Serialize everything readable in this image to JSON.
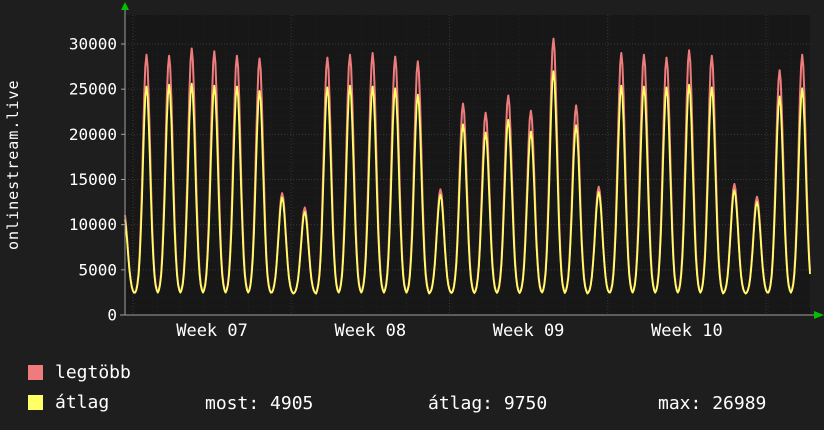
{
  "vertical_title": "onlinestream.live",
  "legend": [
    {
      "label": "legtöbb",
      "color": "#ef7c7c"
    },
    {
      "label": "átlag",
      "color": "#ffff66"
    }
  ],
  "stats": [
    {
      "label": "most:",
      "value": "4905"
    },
    {
      "label": "átlag:",
      "value": "9750"
    },
    {
      "label": "max:",
      "value": "26989"
    }
  ],
  "colors": {
    "background": "#1e1e1e",
    "plot_background": "#171717",
    "axis": "#a0a0a0",
    "arrow": "#00c000",
    "grid_major": "rgba(255,255,255,0.14)",
    "grid_minor": "rgba(255,255,255,0.05)",
    "text": "#ffffff",
    "series_legtobb": "#ef7c7c",
    "series_atlag": "#ffff66"
  },
  "chart_data": {
    "type": "line",
    "title": "",
    "xlabel": "",
    "ylabel": "",
    "ylim": [
      0,
      30000
    ],
    "y_ticks": [
      0,
      5000,
      10000,
      15000,
      20000,
      25000,
      30000
    ],
    "x_week_labels": [
      {
        "label": "Week 07",
        "day": 4.4
      },
      {
        "label": "Week 08",
        "day": 11.4
      },
      {
        "label": "Week 09",
        "day": 18.4
      },
      {
        "label": "Week 10",
        "day": 25.4
      }
    ],
    "week_boundaries": [
      0.9,
      7.9,
      14.9,
      21.9,
      28.9
    ],
    "grid": true,
    "legend_position": "bottom-left",
    "baseline": 2300,
    "t_start": 0.55,
    "t_end": 30.845,
    "series": [
      {
        "name": "legtöbb",
        "color": "#ef7c7c",
        "daily_peaks": [
          11500,
          28800,
          28700,
          29500,
          29200,
          28700,
          28400,
          13500,
          11900,
          28500,
          28800,
          29000,
          28600,
          28100,
          13900,
          23400,
          22400,
          24300,
          22600,
          30600,
          23200,
          14200,
          29000,
          28800,
          28500,
          29300,
          28700,
          14500,
          13100,
          27100,
          28800
        ]
      },
      {
        "name": "átlag",
        "color": "#ffff66",
        "daily_peaks": [
          11000,
          25300,
          25500,
          25600,
          25400,
          25300,
          24800,
          13000,
          11400,
          25200,
          25400,
          25300,
          25100,
          24400,
          13300,
          21100,
          20200,
          21600,
          20300,
          26989,
          21000,
          13600,
          25400,
          25300,
          25200,
          25500,
          25200,
          13800,
          12500,
          24200,
          25100
        ]
      }
    ],
    "summary": {
      "most": 4905,
      "atlag": 9750,
      "max": 26989
    }
  }
}
